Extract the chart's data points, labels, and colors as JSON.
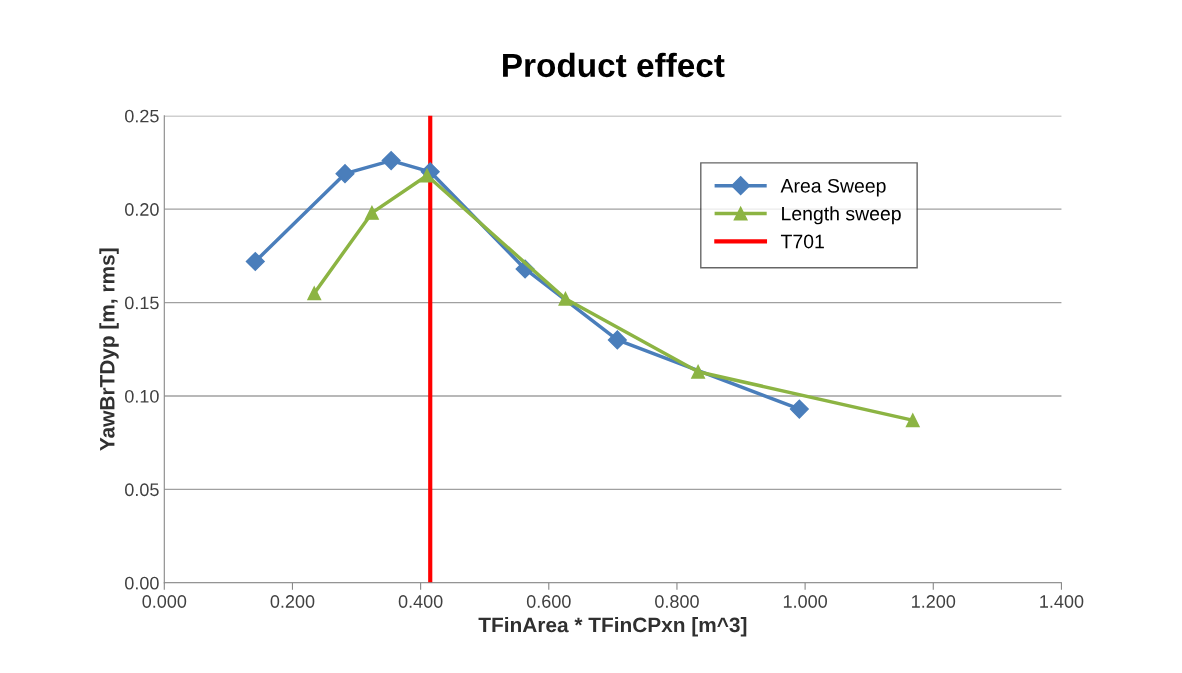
{
  "chart_data": {
    "type": "line",
    "title": "Product effect",
    "xlabel": "TFinArea * TFinCPxn [m^3]",
    "ylabel": "YawBrTDyp [m, rms]",
    "series": [
      {
        "name": "Area Sweep",
        "color": "#4a7ebb",
        "marker": "diamond",
        "x": [
          0.142,
          0.282,
          0.354,
          0.415,
          0.563,
          0.707,
          0.991
        ],
        "values": [
          0.172,
          0.219,
          0.226,
          0.22,
          0.168,
          0.13,
          0.093
        ]
      },
      {
        "name": "Length sweep",
        "color": "#8cb443",
        "marker": "triangle",
        "x": [
          0.234,
          0.324,
          0.41,
          0.626,
          0.833,
          1.168
        ],
        "values": [
          0.155,
          0.198,
          0.218,
          0.152,
          0.113,
          0.087
        ]
      },
      {
        "name": "T701",
        "color": "#ff0000",
        "marker": "none",
        "x": [
          0.415,
          0.415
        ],
        "values": [
          0,
          0.25
        ]
      }
    ],
    "xlim": [
      0,
      1.4
    ],
    "xticks": [
      {
        "value": 0,
        "label": "0.000"
      },
      {
        "value": 0.2,
        "label": "0.200"
      },
      {
        "value": 0.4,
        "label": "0.400"
      },
      {
        "value": 0.6,
        "label": "0.600"
      },
      {
        "value": 0.8,
        "label": "0.800"
      },
      {
        "value": 1.0,
        "label": "1.000"
      },
      {
        "value": 1.2,
        "label": "1.200"
      },
      {
        "value": 1.4,
        "label": "1.400"
      }
    ],
    "ylim": [
      0,
      0.25
    ],
    "yticks": [
      {
        "value": 0,
        "label": "0.00"
      },
      {
        "value": 0.05,
        "label": "0.05"
      },
      {
        "value": 0.1,
        "label": "0.10"
      },
      {
        "value": 0.15,
        "label": "0.15"
      },
      {
        "value": 0.2,
        "label": "0.20"
      },
      {
        "value": 0.25,
        "label": "0.25"
      }
    ],
    "grid": "y",
    "legend": "top right",
    "line_style": "solid"
  }
}
